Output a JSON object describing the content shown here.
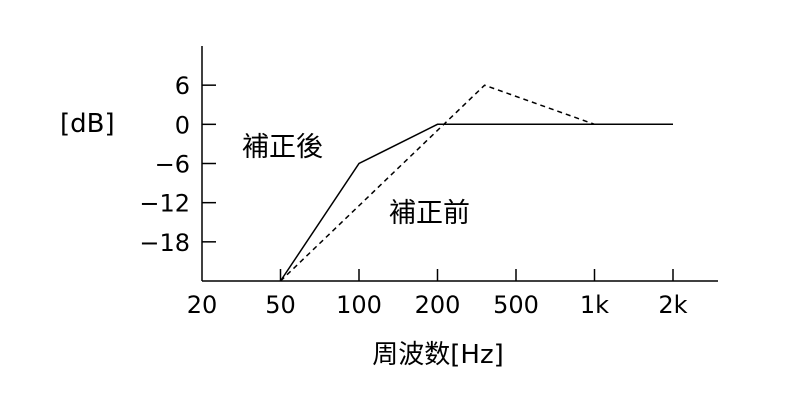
{
  "chart_data": {
    "type": "line",
    "categories": [
      "20",
      "50",
      "100",
      "200",
      "500",
      "1k",
      "2k"
    ],
    "y_ticks": [
      "6",
      "0",
      "−6",
      "−12",
      "−18"
    ],
    "y_tick_values": [
      6,
      0,
      -6,
      -12,
      -18
    ],
    "ylim": [
      -24,
      12
    ],
    "xlabel": "周波数[Hz]",
    "ylabel": "[dB]",
    "grid": false,
    "series": [
      {
        "name": "補正後",
        "style": "solid",
        "points": [
          {
            "x": 1,
            "y": -24
          },
          {
            "x": 2,
            "y": -6
          },
          {
            "x": 3,
            "y": 0
          },
          {
            "x": 6,
            "y": 0
          }
        ]
      },
      {
        "name": "補正前",
        "style": "dashed",
        "points": [
          {
            "x": 1,
            "y": -24
          },
          {
            "x": 3.6,
            "y": 6
          },
          {
            "x": 5,
            "y": 0
          }
        ]
      }
    ],
    "annotations": [
      {
        "text": "補正後",
        "series": 0
      },
      {
        "text": "補正前",
        "series": 1
      }
    ],
    "colors": {
      "line": "#000000",
      "axis": "#000000"
    }
  }
}
